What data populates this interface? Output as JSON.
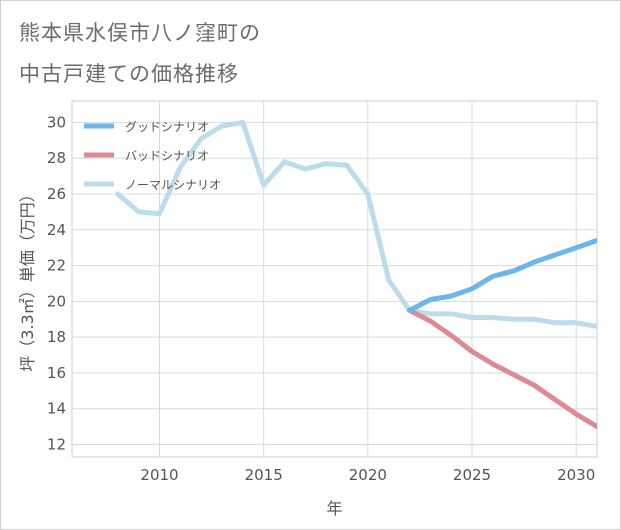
{
  "title_line1": "熊本県水俣市八ノ窪町の",
  "title_line2": "中古戸建ての価格推移",
  "chart_data": {
    "type": "line",
    "title": "熊本県水俣市八ノ窪町の中古戸建ての価格推移",
    "xlabel": "年",
    "ylabel": "坪（3.3㎡）単価（万円）",
    "xlim": [
      2005.8,
      2031
    ],
    "ylim": [
      11.3,
      31.2
    ],
    "xticks": [
      2010,
      2015,
      2020,
      2025,
      2030
    ],
    "yticks": [
      12,
      14,
      16,
      18,
      20,
      22,
      24,
      26,
      28,
      30
    ],
    "legend_position": "top-left",
    "series": [
      {
        "name": "グッドシナリオ",
        "color": "#6db5ea",
        "x": [
          2022,
          2023,
          2024,
          2025,
          2026,
          2027,
          2028,
          2029,
          2030,
          2031
        ],
        "y": [
          19.5,
          20.1,
          20.3,
          20.7,
          21.4,
          21.7,
          22.2,
          22.6,
          23.0,
          23.4
        ]
      },
      {
        "name": "バッドシナリオ",
        "color": "#dd8a92",
        "x": [
          2022,
          2023,
          2024,
          2025,
          2026,
          2027,
          2028,
          2029,
          2030,
          2031
        ],
        "y": [
          19.5,
          18.9,
          18.1,
          17.2,
          16.5,
          15.9,
          15.3,
          14.5,
          13.7,
          13.0
        ]
      },
      {
        "name": "ノーマルシナリオ",
        "color": "#bcdcec",
        "x": [
          2008,
          2009,
          2010,
          2011,
          2012,
          2013,
          2014,
          2015,
          2016,
          2017,
          2018,
          2019,
          2020,
          2021,
          2022,
          2023,
          2024,
          2025,
          2026,
          2027,
          2028,
          2029,
          2030,
          2031
        ],
        "y": [
          26.0,
          25.0,
          24.9,
          27.5,
          29.1,
          29.8,
          30.0,
          26.5,
          27.8,
          27.4,
          27.7,
          27.6,
          26.0,
          21.2,
          19.5,
          19.3,
          19.3,
          19.1,
          19.1,
          19.0,
          19.0,
          18.8,
          18.8,
          18.6
        ]
      }
    ]
  }
}
